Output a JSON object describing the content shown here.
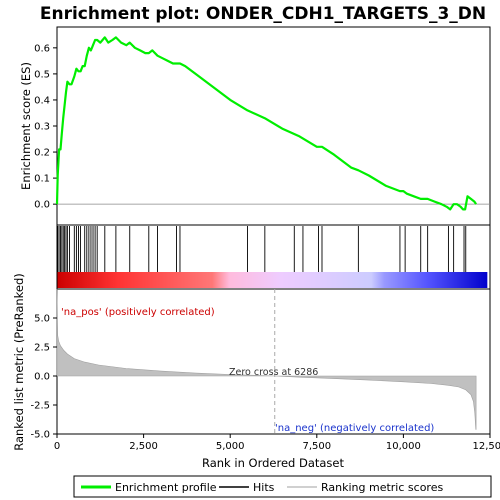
{
  "chart_data": [
    {
      "panel": "enrichment",
      "type": "line",
      "title": "Enrichment plot: ONDER_CDH1_TARGETS_3_DN",
      "ylabel": "Enrichment score (ES)",
      "xlim": [
        0,
        12500
      ],
      "ylim": [
        -0.08,
        0.68
      ],
      "yticks": [
        0.0,
        0.1,
        0.2,
        0.3,
        0.4,
        0.5,
        0.6
      ],
      "ytick_labels": [
        "0.0",
        "0.1",
        "0.2",
        "0.3",
        "0.4",
        "0.5",
        "0.6"
      ],
      "grid": false,
      "series": [
        {
          "name": "Enrichment profile",
          "color": "#00ee00",
          "x": [
            0,
            20,
            60,
            100,
            140,
            180,
            220,
            260,
            300,
            360,
            420,
            500,
            560,
            620,
            680,
            740,
            800,
            860,
            920,
            980,
            1040,
            1100,
            1160,
            1250,
            1380,
            1480,
            1600,
            1700,
            1850,
            2000,
            2100,
            2250,
            2400,
            2550,
            2650,
            2750,
            2900,
            3050,
            3200,
            3350,
            3450,
            3550,
            3700,
            4000,
            4500,
            5000,
            5500,
            6000,
            6500,
            7000,
            7500,
            7650,
            8000,
            8500,
            8700,
            9000,
            9500,
            9900,
            10000,
            10100,
            10300,
            10500,
            10650,
            10700,
            10900,
            11100,
            11250,
            11350,
            11450,
            11550,
            11650,
            11720,
            11780,
            11850,
            11950,
            12050,
            12100
          ],
          "y": [
            0.0,
            0.11,
            0.21,
            0.21,
            0.27,
            0.33,
            0.38,
            0.43,
            0.47,
            0.46,
            0.46,
            0.49,
            0.52,
            0.51,
            0.51,
            0.53,
            0.53,
            0.57,
            0.6,
            0.59,
            0.61,
            0.63,
            0.63,
            0.62,
            0.64,
            0.62,
            0.63,
            0.64,
            0.62,
            0.61,
            0.62,
            0.6,
            0.59,
            0.58,
            0.58,
            0.59,
            0.57,
            0.56,
            0.55,
            0.54,
            0.54,
            0.54,
            0.53,
            0.5,
            0.45,
            0.4,
            0.36,
            0.33,
            0.29,
            0.26,
            0.22,
            0.22,
            0.19,
            0.14,
            0.13,
            0.11,
            0.07,
            0.05,
            0.05,
            0.04,
            0.03,
            0.02,
            0.02,
            0.02,
            0.01,
            0.0,
            -0.01,
            -0.02,
            0.0,
            0.0,
            -0.01,
            -0.02,
            -0.02,
            0.03,
            0.02,
            0.01,
            0.0
          ]
        }
      ]
    },
    {
      "panel": "hits",
      "type": "scatter",
      "series_name": "Hits",
      "color": "#000000",
      "x": [
        20,
        60,
        100,
        140,
        180,
        220,
        260,
        300,
        360,
        500,
        560,
        620,
        680,
        800,
        860,
        920,
        980,
        1040,
        1100,
        1160,
        1380,
        1700,
        2100,
        2650,
        2900,
        3450,
        3550,
        5500,
        6000,
        6850,
        7100,
        7550,
        7650,
        8700,
        9900,
        10050,
        10500,
        10700,
        11300,
        11450,
        11750,
        11800
      ]
    },
    {
      "panel": "ranked-metric-heatmap",
      "type": "heatmap",
      "colors": [
        "#cc0000",
        "#ff3333",
        "#ff7777",
        "#ffbbdd",
        "#eeccff",
        "#ccccff",
        "#9999ff",
        "#5555ff",
        "#0000cc"
      ]
    },
    {
      "panel": "ranked-metric",
      "type": "area",
      "xlabel": "Rank in Ordered Dataset",
      "ylabel": "Ranked list metric (PreRanked)",
      "xlim": [
        0,
        12500
      ],
      "ylim": [
        -5.0,
        7.5
      ],
      "xticks": [
        0,
        2500,
        5000,
        7500,
        10000,
        12500
      ],
      "xtick_labels": [
        "0",
        "2,500",
        "5,000",
        "7,500",
        "10,000",
        "12,500"
      ],
      "yticks": [
        -5.0,
        -2.5,
        0.0,
        2.5,
        5.0
      ],
      "ytick_labels": [
        "-5.0",
        "-2.5",
        "0.0",
        "2.5",
        "5.0"
      ],
      "series_name": "Ranking metric scores",
      "fill_color": "#c0c0c0",
      "x": [
        0,
        20,
        50,
        100,
        200,
        300,
        500,
        800,
        1200,
        2000,
        3000,
        4000,
        5000,
        6286,
        7000,
        8000,
        9000,
        10000,
        10800,
        11300,
        11600,
        11800,
        11950,
        12020,
        12060,
        12090,
        12100
      ],
      "y": [
        7.5,
        3.5,
        3.0,
        2.6,
        2.2,
        1.9,
        1.5,
        1.2,
        0.95,
        0.65,
        0.42,
        0.25,
        0.13,
        0.0,
        -0.1,
        -0.22,
        -0.35,
        -0.5,
        -0.65,
        -0.8,
        -0.95,
        -1.2,
        -1.6,
        -2.2,
        -3.2,
        -4.6,
        -4.6
      ],
      "zero_cross": 6286,
      "annotations": {
        "pos": "'na_pos' (positively correlated)",
        "neg": "'na_neg' (negatively correlated)",
        "zero": "Zero cross at 6286"
      }
    }
  ],
  "legend": {
    "items": [
      {
        "label": "Enrichment profile",
        "color": "#00ee00"
      },
      {
        "label": "Hits",
        "color": "#000000"
      },
      {
        "label": "Ranking metric scores",
        "color": "#c0c0c0"
      }
    ]
  }
}
